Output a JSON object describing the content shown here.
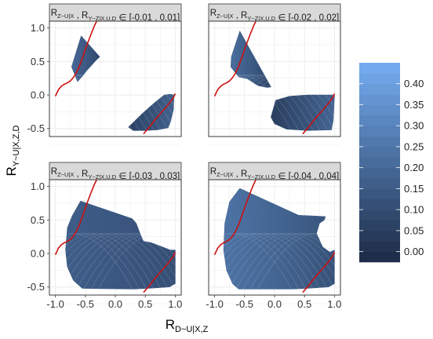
{
  "chart_data": {
    "type": "contour-facets",
    "xlabel": {
      "main": "R",
      "sub": "D~U|X,Z"
    },
    "ylabel": {
      "main": "R",
      "sub": "Y~U|X,Z,D"
    },
    "xlim": [
      -1.1,
      1.1
    ],
    "ylim": [
      -0.62,
      1.1
    ],
    "x_ticks": [
      -1.0,
      -0.5,
      0.0,
      0.5,
      1.0
    ],
    "x_tick_labels": [
      "-1.0",
      "-0.5",
      "0.0",
      "0.5",
      "1.0"
    ],
    "y_ticks": [
      -0.5,
      0.0,
      0.5,
      1.0
    ],
    "y_tick_labels": [
      "-0.5",
      "0.0",
      "0.5",
      "1.0"
    ],
    "grid": true,
    "legend": {
      "position": "right",
      "levels": [
        -0.025,
        0.0,
        0.025,
        0.05,
        0.075,
        0.1,
        0.125,
        0.15,
        0.175,
        0.2,
        0.225,
        0.25,
        0.275,
        0.3,
        0.325,
        0.35,
        0.375,
        0.4,
        0.425,
        0.45
      ],
      "tick_values": [
        0.4,
        0.35,
        0.3,
        0.25,
        0.2,
        0.15,
        0.1,
        0.05,
        0.0
      ],
      "tick_labels": [
        "0.40",
        "0.35",
        "0.30",
        "0.25",
        "0.20",
        "0.15",
        "0.10",
        "0.05",
        "0.00"
      ],
      "color_low": "#1c2a44",
      "color_high": "#74adf2"
    },
    "curve_color": "#cc1111",
    "curve": {
      "x": [
        -1.0,
        -0.95,
        -0.9,
        -0.85,
        -0.8,
        -0.75,
        -0.7,
        -0.65,
        -0.6,
        -0.55,
        -0.5,
        -0.45,
        -0.4,
        -0.35,
        -0.3
      ],
      "y": [
        -0.02,
        0.08,
        0.13,
        0.16,
        0.18,
        0.21,
        0.26,
        0.33,
        0.43,
        0.55,
        0.68,
        0.8,
        0.92,
        1.03,
        1.12
      ]
    },
    "panels": [
      {
        "label": {
          "r1": "R",
          "s1": "Z~U|X",
          "sep": " , ",
          "r2": "R",
          "s2": "Y~Z|X,U,D",
          "rest": " ∈ [-0.01 , 0.01]"
        },
        "regions": [
          {
            "outer": [
              [
                -0.57,
                0.88
              ],
              [
                -0.73,
                0.42
              ],
              [
                -0.63,
                0.2
              ],
              [
                -0.55,
                0.28
              ],
              [
                -0.48,
                0.36
              ],
              [
                -0.4,
                0.44
              ],
              [
                -0.32,
                0.52
              ],
              [
                -0.26,
                0.57
              ]
            ],
            "inner": [
              [
                -0.6,
                0.87
              ],
              [
                -0.5,
                0.8
              ],
              [
                -0.4,
                0.73
              ],
              [
                -0.32,
                0.66
              ],
              [
                -0.26,
                0.57
              ]
            ],
            "value_left": 0.2,
            "value_right": 0.08
          },
          {
            "outer": [
              [
                0.22,
                -0.48
              ],
              [
                0.45,
                -0.28
              ],
              [
                0.65,
                -0.12
              ],
              [
                0.82,
                0.0
              ],
              [
                0.92,
                0.01
              ],
              [
                0.98,
                0.0
              ],
              [
                0.97,
                -0.22
              ],
              [
                0.92,
                -0.4
              ],
              [
                0.88,
                -0.49
              ],
              [
                0.7,
                -0.52
              ],
              [
                0.5,
                -0.53
              ],
              [
                0.3,
                -0.53
              ]
            ],
            "inner": [],
            "value_left": 0.06,
            "value_right": 0.18
          }
        ]
      },
      {
        "label": {
          "r1": "R",
          "s1": "Z~U|X",
          "sep": " , ",
          "r2": "R",
          "s2": "Y~Z|X,U,D",
          "rest": " ∈ [-0.02 , 0.02]"
        },
        "regions": [
          {
            "outer": [
              [
                -0.58,
                0.95
              ],
              [
                -0.72,
                0.57
              ],
              [
                -0.73,
                0.42
              ],
              [
                -0.6,
                0.27
              ],
              [
                -0.45,
                0.24
              ],
              [
                -0.28,
                0.14
              ],
              [
                -0.12,
                0.11
              ],
              [
                -0.06,
                0.12
              ]
            ],
            "inner": [
              [
                -0.6,
                0.93
              ],
              [
                -0.45,
                0.84
              ],
              [
                -0.3,
                0.72
              ],
              [
                -0.18,
                0.55
              ],
              [
                -0.1,
                0.35
              ],
              [
                -0.06,
                0.12
              ]
            ],
            "value_left": 0.22,
            "value_right": 0.07
          },
          {
            "outer": [
              [
                -0.06,
                -0.33
              ],
              [
                0.02,
                -0.08
              ],
              [
                0.25,
                -0.02
              ],
              [
                0.55,
                0.0
              ],
              [
                0.8,
                0.0
              ],
              [
                1.0,
                0.0
              ],
              [
                0.98,
                -0.38
              ],
              [
                0.95,
                -0.52
              ],
              [
                0.55,
                -0.53
              ],
              [
                0.2,
                -0.51
              ],
              [
                0.0,
                -0.43
              ]
            ],
            "inner": [],
            "value_left": 0.05,
            "value_right": 0.19
          }
        ]
      },
      {
        "label": {
          "r1": "R",
          "s1": "Z~U|X",
          "sep": " , ",
          "r2": "R",
          "s2": "Y~Z|X,U,D",
          "rest": " ∈ [-0.03 , 0.03]"
        },
        "regions": [
          {
            "outer": [
              [
                -0.58,
                0.78
              ],
              [
                -0.72,
                0.56
              ],
              [
                -0.8,
                0.38
              ],
              [
                -0.83,
                0.05
              ],
              [
                -0.8,
                -0.2
              ],
              [
                -0.7,
                -0.4
              ],
              [
                -0.55,
                -0.52
              ],
              [
                0.3,
                -0.53
              ],
              [
                0.55,
                -0.52
              ],
              [
                0.9,
                -0.5
              ],
              [
                1.0,
                -0.45
              ],
              [
                1.0,
                0.05
              ],
              [
                0.92,
                0.05
              ],
              [
                0.6,
                0.16
              ],
              [
                0.47,
                0.18
              ],
              [
                0.42,
                0.28
              ],
              [
                0.35,
                0.45
              ],
              [
                0.28,
                0.52
              ]
            ],
            "inner": [
              [
                -0.58,
                0.78
              ],
              [
                -0.42,
                0.76
              ],
              [
                -0.25,
                0.7
              ],
              [
                0.0,
                0.65
              ],
              [
                0.15,
                0.6
              ],
              [
                0.28,
                0.52
              ]
            ],
            "value_left": 0.16,
            "value_right": 0.11
          }
        ]
      },
      {
        "label": {
          "r1": "R",
          "s1": "Z~U|X",
          "sep": " , ",
          "r2": "R",
          "s2": "Y~Z|X,U,D",
          "rest": " ∈ [-0.04 , 0.04]"
        },
        "regions": [
          {
            "outer": [
              [
                -0.58,
                0.97
              ],
              [
                -0.75,
                0.77
              ],
              [
                -0.83,
                0.45
              ],
              [
                -0.85,
                0.05
              ],
              [
                -0.8,
                -0.25
              ],
              [
                -0.7,
                -0.45
              ],
              [
                -0.6,
                -0.53
              ],
              [
                0.3,
                -0.53
              ],
              [
                0.55,
                -0.52
              ],
              [
                0.9,
                -0.5
              ],
              [
                1.0,
                -0.45
              ],
              [
                1.0,
                0.05
              ],
              [
                0.92,
                0.02
              ],
              [
                0.8,
                0.1
              ],
              [
                0.7,
                0.3
              ],
              [
                0.75,
                0.45
              ],
              [
                0.83,
                0.5
              ],
              [
                0.85,
                0.55
              ],
              [
                0.65,
                0.56
              ],
              [
                0.4,
                0.57
              ]
            ],
            "inner": [
              [
                -0.58,
                0.97
              ],
              [
                -0.4,
                0.92
              ],
              [
                -0.2,
                0.85
              ],
              [
                0.0,
                0.78
              ],
              [
                0.2,
                0.68
              ],
              [
                0.4,
                0.57
              ]
            ],
            "value_left": 0.24,
            "value_right": 0.12
          }
        ]
      }
    ]
  }
}
